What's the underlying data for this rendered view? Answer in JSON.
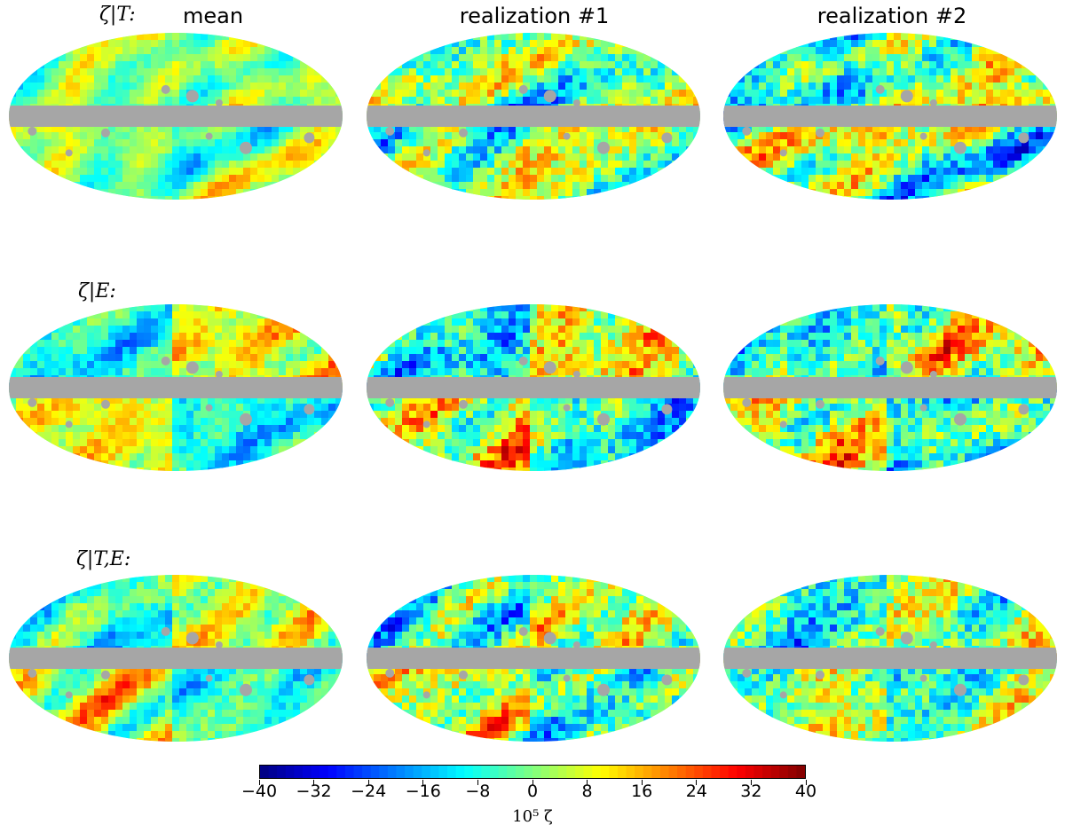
{
  "chart_data": {
    "type": "heatmap",
    "projection": "Mollweide all-sky",
    "columns": [
      {
        "title": "mean"
      },
      {
        "title": "realization #1"
      },
      {
        "title": "realization #2"
      }
    ],
    "rows": [
      {
        "label": "ζ|T:"
      },
      {
        "label": "ζ|E:"
      },
      {
        "label": "ζ|T,E:"
      }
    ],
    "panels": [
      {
        "row": 0,
        "col": 0,
        "variance": 0.3,
        "large_scale": [
          0.15,
          -0.1
        ],
        "seed": 11
      },
      {
        "row": 0,
        "col": 1,
        "variance": 0.75,
        "large_scale": [
          0.1,
          -0.05
        ],
        "seed": 23
      },
      {
        "row": 0,
        "col": 2,
        "variance": 0.75,
        "large_scale": [
          0.1,
          -0.05
        ],
        "seed": 37
      },
      {
        "row": 1,
        "col": 0,
        "variance": 0.45,
        "large_scale": [
          0.55,
          -0.55
        ],
        "seed": 41
      },
      {
        "row": 1,
        "col": 1,
        "variance": 0.8,
        "large_scale": [
          0.45,
          -0.45
        ],
        "seed": 53
      },
      {
        "row": 1,
        "col": 2,
        "variance": 0.8,
        "large_scale": [
          0.45,
          -0.45
        ],
        "seed": 67
      },
      {
        "row": 2,
        "col": 0,
        "variance": 0.45,
        "large_scale": [
          0.4,
          -0.4
        ],
        "seed": 71
      },
      {
        "row": 2,
        "col": 1,
        "variance": 0.8,
        "large_scale": [
          0.35,
          -0.35
        ],
        "seed": 83
      },
      {
        "row": 2,
        "col": 2,
        "variance": 0.8,
        "large_scale": [
          0.35,
          -0.35
        ],
        "seed": 97
      }
    ],
    "mask_color": "#a6a6a6",
    "colormap": "jet",
    "colorbar": {
      "min": -40,
      "max": 40,
      "ticks": [
        -40,
        -32,
        -24,
        -16,
        -8,
        0,
        8,
        16,
        24,
        32,
        40
      ],
      "tick_labels": [
        "−40",
        "−32",
        "−24",
        "−16",
        "−8",
        "0",
        "8",
        "16",
        "24",
        "32",
        "40"
      ],
      "label": "10⁵ ζ"
    }
  }
}
